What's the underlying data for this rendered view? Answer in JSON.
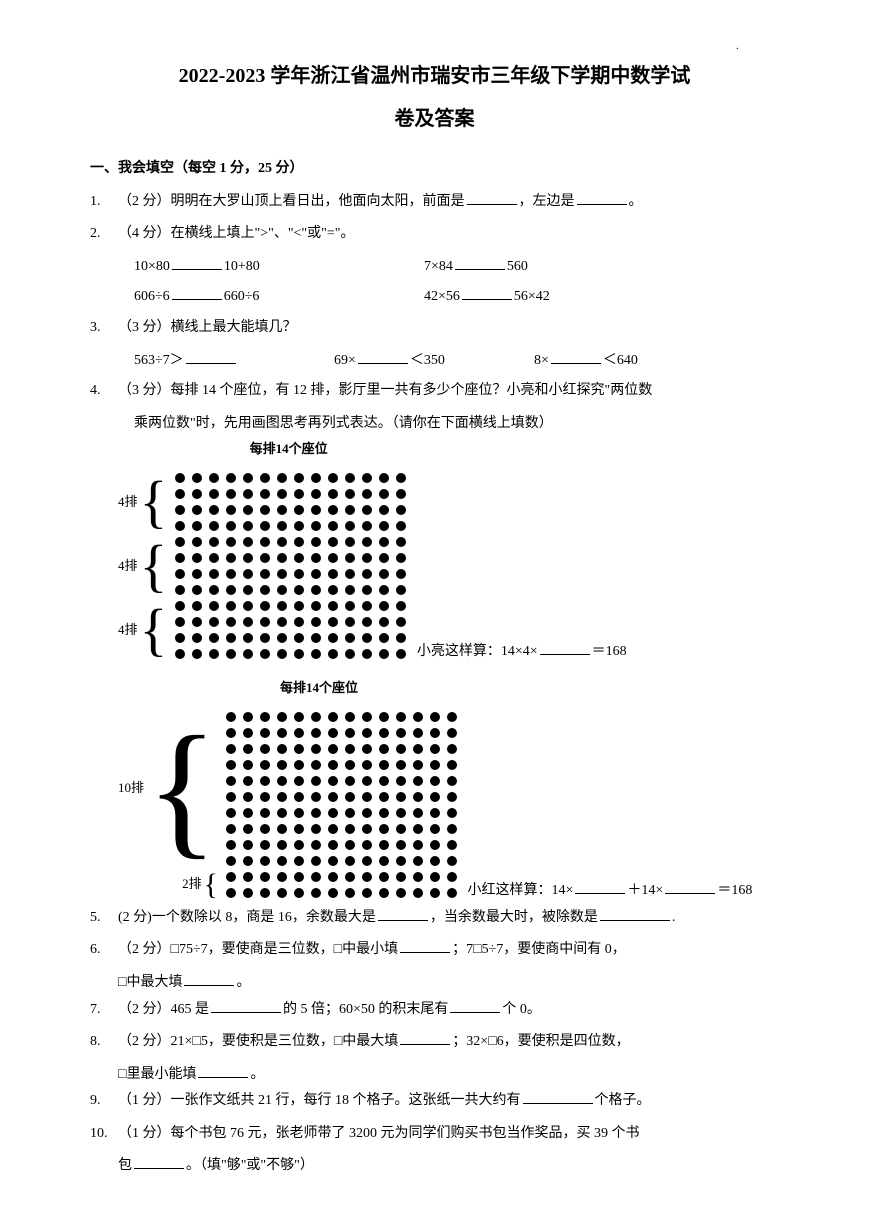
{
  "page_marker": "·",
  "title_line1": "2022-2023 学年浙江省温州市瑞安市三年级下学期中数学试",
  "title_line2": "卷及答案",
  "section1_header": "一、我会填空（每空 1 分，25 分）",
  "q1": {
    "num": "1.",
    "points": "（2 分）",
    "text1": "明明在大罗山顶上看日出，他面向太阳，前面是",
    "text2": "，左边是",
    "text3": "。"
  },
  "q2": {
    "num": "2.",
    "points": "（4 分）",
    "text": "在横线上填上\">\"、\"<\"或\"=\"。",
    "row1_left_a": "10×80",
    "row1_left_b": "10+80",
    "row1_right_a": "7×84",
    "row1_right_b": "560",
    "row2_left_a": "606÷6",
    "row2_left_b": "660÷6",
    "row2_right_a": "42×56",
    "row2_right_b": "56×42"
  },
  "q3": {
    "num": "3.",
    "points": "（3 分）",
    "text": "横线上最大能填几？",
    "c1": "563÷7＞",
    "c2a": "69×",
    "c2b": "＜350",
    "c3a": "8×",
    "c3b": "＜640"
  },
  "q4": {
    "num": "4.",
    "points": "（3 分）",
    "text1": "每排 14 个座位，有 12 排，影厅里一共有多少个座位？小亮和小红探究\"两位数",
    "text2": "乘两位数\"时，先用画图思考再列式表达。（请你在下面横线上填数）",
    "diagram1": {
      "col_label": "每排14个座位",
      "row_labels": [
        "4排",
        "4排",
        "4排"
      ],
      "cols": 14,
      "rows": 12,
      "caption_a": "小亮这样算：14×4×",
      "caption_b": "＝168"
    },
    "diagram2": {
      "col_label": "每排14个座位",
      "row_labels": [
        "10排",
        "2排"
      ],
      "cols": 14,
      "rows": 12,
      "caption_a": "小红这样算：14×",
      "caption_b": "＋14×",
      "caption_c": "＝168"
    }
  },
  "q5": {
    "num": "5.",
    "points": "(2 分)",
    "text1": "一个数除以 8，商是 16，余数最大是",
    "text2": "，当余数最大时，被除数是",
    "text3": "."
  },
  "q6": {
    "num": "6.",
    "points": "（2 分）",
    "text1": "□75÷7，要使商是三位数，□中最小填",
    "text2": "；7□5÷7，要使商中间有 0，",
    "text3": "□中最大填",
    "text4": "。"
  },
  "q7": {
    "num": "7.",
    "points": "（2 分）",
    "text1": "465 是",
    "text2": "的 5 倍；60×50 的积末尾有",
    "text3": "个 0。"
  },
  "q8": {
    "num": "8.",
    "points": "（2 分）",
    "text1": "21×□5，要使积是三位数，□中最大填",
    "text2": "；32×□6，要使积是四位数，",
    "text3": "□里最小能填",
    "text4": "。"
  },
  "q9": {
    "num": "9.",
    "points": "（1 分）",
    "text1": "一张作文纸共 21 行，每行 18 个格子。这张纸一共大约有",
    "text2": "个格子。"
  },
  "q10": {
    "num": "10.",
    "points": "（1 分）",
    "text1": "每个书包 76 元，张老师带了 3200 元为同学们购买书包当作奖品，买 39 个书",
    "text2": "包",
    "text3": "。（填\"够\"或\"不够\"）"
  },
  "styling": {
    "bg_color": "#ffffff",
    "text_color": "#000000",
    "font_family": "SimSun",
    "title_fontsize": 20,
    "body_fontsize": 14,
    "dot_color": "#000000",
    "dot_size": 10,
    "blank_min_width": 50
  }
}
